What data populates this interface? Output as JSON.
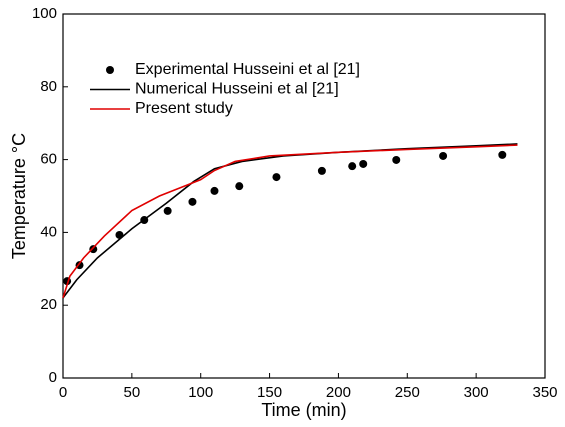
{
  "chart_data": {
    "type": "line",
    "x_label": "Time (min)",
    "y_label": "Temperature °C",
    "xlim": [
      0,
      350
    ],
    "xticks": [
      0,
      50,
      100,
      150,
      200,
      250,
      300,
      350
    ],
    "ylim": [
      0,
      100
    ],
    "yticks": [
      0,
      20,
      40,
      60,
      80,
      100
    ],
    "legend": "upper-left",
    "series": [
      {
        "name": "Experimental Husseini et al [21]",
        "color": "#000000",
        "mode": "markers",
        "x": [
          3,
          12,
          22,
          41,
          59,
          76,
          94,
          110,
          128,
          155,
          188,
          210,
          218,
          242,
          276,
          319
        ],
        "values": [
          26.6,
          31,
          35.4,
          39.3,
          43.4,
          45.9,
          48.4,
          51.4,
          52.7,
          55.2,
          56.9,
          58.2,
          58.8,
          59.9,
          61,
          61.3
        ]
      },
      {
        "name": "Numerical Husseini et al [21]",
        "color": "#000000",
        "mode": "lines",
        "x": [
          0,
          10,
          25,
          50,
          75,
          95,
          110,
          130,
          160,
          200,
          250,
          300,
          330
        ],
        "values": [
          22,
          27,
          33,
          41,
          48,
          54,
          57.5,
          59.5,
          61,
          62,
          63,
          63.8,
          64.3
        ]
      },
      {
        "name": "Present study",
        "color": "#e00000",
        "mode": "lines",
        "x": [
          0,
          5,
          15,
          30,
          50,
          70,
          90,
          100,
          110,
          125,
          150,
          200,
          250,
          300,
          330
        ],
        "values": [
          22,
          28,
          33,
          39,
          46,
          50,
          53,
          54.5,
          57,
          59.5,
          61,
          62,
          62.8,
          63.5,
          64
        ]
      }
    ]
  }
}
